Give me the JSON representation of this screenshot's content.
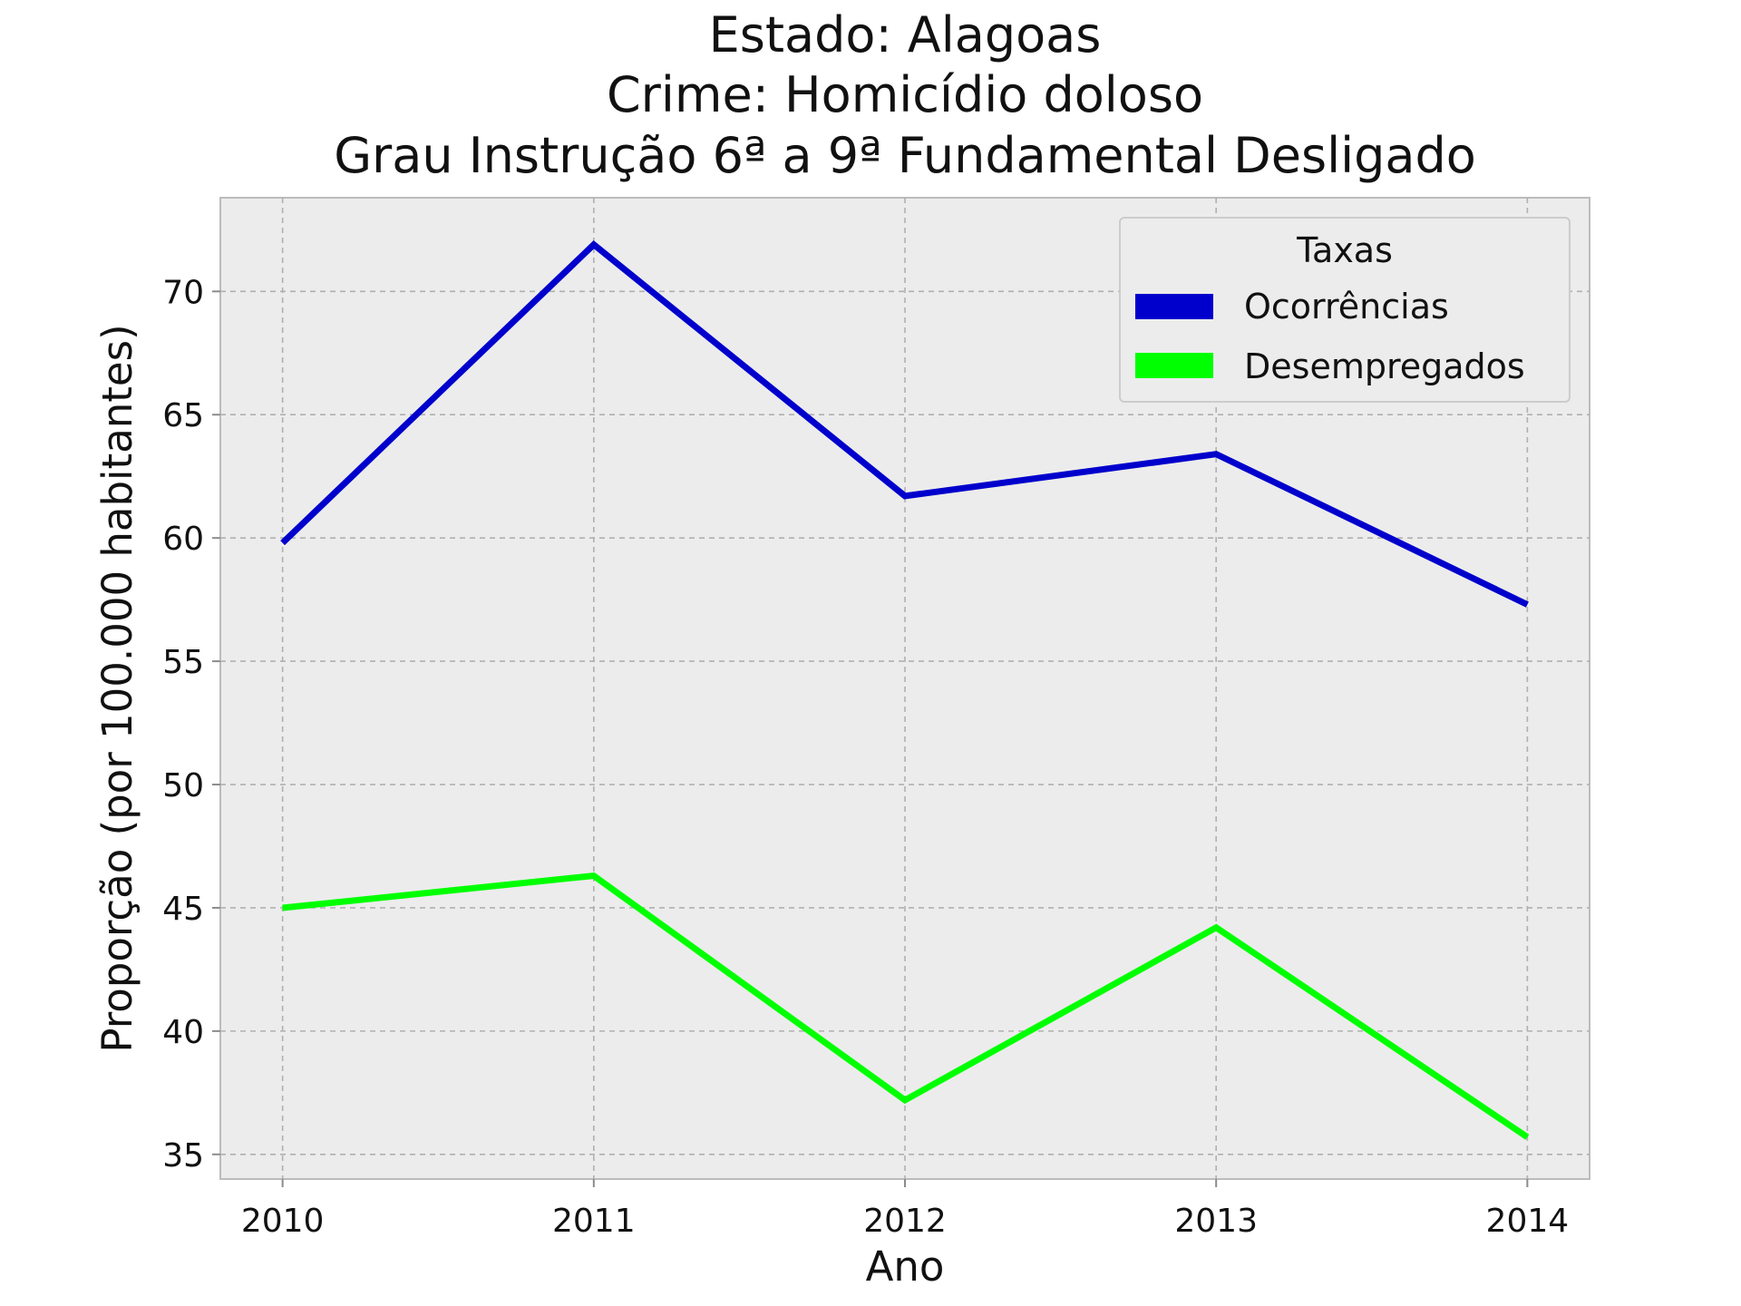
{
  "chart_data": {
    "type": "line",
    "title_lines": [
      "Estado: Alagoas",
      "Crime: Homicídio doloso",
      "Grau Instrução  6ª a 9ª Fundamental   Desligado"
    ],
    "xlabel": "Ano",
    "ylabel": "Proporção (por 100.000 habitantes)",
    "x": [
      2010,
      2011,
      2012,
      2013,
      2014
    ],
    "x_tick_labels": [
      "2010",
      "2011",
      "2012",
      "2013",
      "2014"
    ],
    "xlim": [
      2009.8,
      2014.2
    ],
    "ylim": [
      34.0,
      73.8
    ],
    "y_ticks": [
      35,
      40,
      45,
      50,
      55,
      60,
      65,
      70
    ],
    "y_tick_labels": [
      "35",
      "40",
      "45",
      "50",
      "55",
      "60",
      "65",
      "70"
    ],
    "grid": true,
    "legend": {
      "title": "Taxas",
      "placement": "top-right"
    },
    "series": [
      {
        "name": "Ocorrências",
        "color": "#0000cc",
        "values": [
          59.8,
          71.9,
          61.7,
          63.4,
          57.3
        ]
      },
      {
        "name": "Desempregados",
        "color": "#00ff00",
        "values": [
          45.0,
          46.3,
          37.2,
          44.2,
          35.7
        ]
      }
    ]
  }
}
